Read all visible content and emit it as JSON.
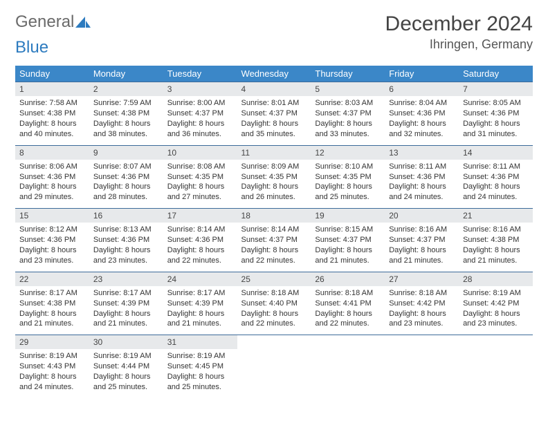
{
  "brand": {
    "part1": "General",
    "part2": "Blue"
  },
  "title": "December 2024",
  "location": "Ihringen, Germany",
  "colors": {
    "header_bg": "#3b87c8",
    "header_fg": "#ffffff",
    "daynum_bg": "#e7e9eb",
    "row_border": "#3b6a99",
    "brand_gray": "#6a6a6a",
    "brand_blue": "#2d7bbf"
  },
  "dow": [
    "Sunday",
    "Monday",
    "Tuesday",
    "Wednesday",
    "Thursday",
    "Friday",
    "Saturday"
  ],
  "weeks": [
    [
      {
        "n": "1",
        "sr": "Sunrise: 7:58 AM",
        "ss": "Sunset: 4:38 PM",
        "d1": "Daylight: 8 hours",
        "d2": "and 40 minutes."
      },
      {
        "n": "2",
        "sr": "Sunrise: 7:59 AM",
        "ss": "Sunset: 4:38 PM",
        "d1": "Daylight: 8 hours",
        "d2": "and 38 minutes."
      },
      {
        "n": "3",
        "sr": "Sunrise: 8:00 AM",
        "ss": "Sunset: 4:37 PM",
        "d1": "Daylight: 8 hours",
        "d2": "and 36 minutes."
      },
      {
        "n": "4",
        "sr": "Sunrise: 8:01 AM",
        "ss": "Sunset: 4:37 PM",
        "d1": "Daylight: 8 hours",
        "d2": "and 35 minutes."
      },
      {
        "n": "5",
        "sr": "Sunrise: 8:03 AM",
        "ss": "Sunset: 4:37 PM",
        "d1": "Daylight: 8 hours",
        "d2": "and 33 minutes."
      },
      {
        "n": "6",
        "sr": "Sunrise: 8:04 AM",
        "ss": "Sunset: 4:36 PM",
        "d1": "Daylight: 8 hours",
        "d2": "and 32 minutes."
      },
      {
        "n": "7",
        "sr": "Sunrise: 8:05 AM",
        "ss": "Sunset: 4:36 PM",
        "d1": "Daylight: 8 hours",
        "d2": "and 31 minutes."
      }
    ],
    [
      {
        "n": "8",
        "sr": "Sunrise: 8:06 AM",
        "ss": "Sunset: 4:36 PM",
        "d1": "Daylight: 8 hours",
        "d2": "and 29 minutes."
      },
      {
        "n": "9",
        "sr": "Sunrise: 8:07 AM",
        "ss": "Sunset: 4:36 PM",
        "d1": "Daylight: 8 hours",
        "d2": "and 28 minutes."
      },
      {
        "n": "10",
        "sr": "Sunrise: 8:08 AM",
        "ss": "Sunset: 4:35 PM",
        "d1": "Daylight: 8 hours",
        "d2": "and 27 minutes."
      },
      {
        "n": "11",
        "sr": "Sunrise: 8:09 AM",
        "ss": "Sunset: 4:35 PM",
        "d1": "Daylight: 8 hours",
        "d2": "and 26 minutes."
      },
      {
        "n": "12",
        "sr": "Sunrise: 8:10 AM",
        "ss": "Sunset: 4:35 PM",
        "d1": "Daylight: 8 hours",
        "d2": "and 25 minutes."
      },
      {
        "n": "13",
        "sr": "Sunrise: 8:11 AM",
        "ss": "Sunset: 4:36 PM",
        "d1": "Daylight: 8 hours",
        "d2": "and 24 minutes."
      },
      {
        "n": "14",
        "sr": "Sunrise: 8:11 AM",
        "ss": "Sunset: 4:36 PM",
        "d1": "Daylight: 8 hours",
        "d2": "and 24 minutes."
      }
    ],
    [
      {
        "n": "15",
        "sr": "Sunrise: 8:12 AM",
        "ss": "Sunset: 4:36 PM",
        "d1": "Daylight: 8 hours",
        "d2": "and 23 minutes."
      },
      {
        "n": "16",
        "sr": "Sunrise: 8:13 AM",
        "ss": "Sunset: 4:36 PM",
        "d1": "Daylight: 8 hours",
        "d2": "and 23 minutes."
      },
      {
        "n": "17",
        "sr": "Sunrise: 8:14 AM",
        "ss": "Sunset: 4:36 PM",
        "d1": "Daylight: 8 hours",
        "d2": "and 22 minutes."
      },
      {
        "n": "18",
        "sr": "Sunrise: 8:14 AM",
        "ss": "Sunset: 4:37 PM",
        "d1": "Daylight: 8 hours",
        "d2": "and 22 minutes."
      },
      {
        "n": "19",
        "sr": "Sunrise: 8:15 AM",
        "ss": "Sunset: 4:37 PM",
        "d1": "Daylight: 8 hours",
        "d2": "and 21 minutes."
      },
      {
        "n": "20",
        "sr": "Sunrise: 8:16 AM",
        "ss": "Sunset: 4:37 PM",
        "d1": "Daylight: 8 hours",
        "d2": "and 21 minutes."
      },
      {
        "n": "21",
        "sr": "Sunrise: 8:16 AM",
        "ss": "Sunset: 4:38 PM",
        "d1": "Daylight: 8 hours",
        "d2": "and 21 minutes."
      }
    ],
    [
      {
        "n": "22",
        "sr": "Sunrise: 8:17 AM",
        "ss": "Sunset: 4:38 PM",
        "d1": "Daylight: 8 hours",
        "d2": "and 21 minutes."
      },
      {
        "n": "23",
        "sr": "Sunrise: 8:17 AM",
        "ss": "Sunset: 4:39 PM",
        "d1": "Daylight: 8 hours",
        "d2": "and 21 minutes."
      },
      {
        "n": "24",
        "sr": "Sunrise: 8:17 AM",
        "ss": "Sunset: 4:39 PM",
        "d1": "Daylight: 8 hours",
        "d2": "and 21 minutes."
      },
      {
        "n": "25",
        "sr": "Sunrise: 8:18 AM",
        "ss": "Sunset: 4:40 PM",
        "d1": "Daylight: 8 hours",
        "d2": "and 22 minutes."
      },
      {
        "n": "26",
        "sr": "Sunrise: 8:18 AM",
        "ss": "Sunset: 4:41 PM",
        "d1": "Daylight: 8 hours",
        "d2": "and 22 minutes."
      },
      {
        "n": "27",
        "sr": "Sunrise: 8:18 AM",
        "ss": "Sunset: 4:42 PM",
        "d1": "Daylight: 8 hours",
        "d2": "and 23 minutes."
      },
      {
        "n": "28",
        "sr": "Sunrise: 8:19 AM",
        "ss": "Sunset: 4:42 PM",
        "d1": "Daylight: 8 hours",
        "d2": "and 23 minutes."
      }
    ],
    [
      {
        "n": "29",
        "sr": "Sunrise: 8:19 AM",
        "ss": "Sunset: 4:43 PM",
        "d1": "Daylight: 8 hours",
        "d2": "and 24 minutes."
      },
      {
        "n": "30",
        "sr": "Sunrise: 8:19 AM",
        "ss": "Sunset: 4:44 PM",
        "d1": "Daylight: 8 hours",
        "d2": "and 25 minutes."
      },
      {
        "n": "31",
        "sr": "Sunrise: 8:19 AM",
        "ss": "Sunset: 4:45 PM",
        "d1": "Daylight: 8 hours",
        "d2": "and 25 minutes."
      },
      null,
      null,
      null,
      null
    ]
  ]
}
